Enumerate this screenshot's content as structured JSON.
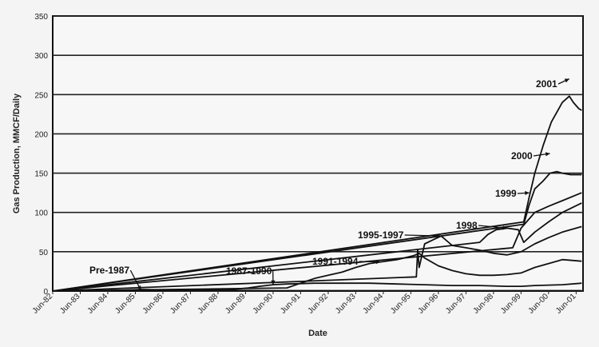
{
  "chart_data": {
    "type": "line",
    "title": "",
    "xlabel": "Date",
    "ylabel": "Gas Production, MMCF/Daily",
    "ylim": [
      0,
      350
    ],
    "yticks": [
      0,
      50,
      100,
      150,
      200,
      250,
      300,
      350
    ],
    "xlim": [
      1982.5,
      2001.75
    ],
    "xtick_labels": [
      "Jun-82",
      "Jun-83",
      "Jun-84",
      "Jun-85",
      "Jun-86",
      "Jun-87",
      "Jun-88",
      "Jun-89",
      "Jun-90",
      "Jun-91",
      "Jun-92",
      "Jun-93",
      "Jun-94",
      "Jun-95",
      "Jun-96",
      "Jun-97",
      "Jun-98",
      "Jun-99",
      "Jun-00",
      "Jun-01"
    ],
    "xtick_values": [
      1982.5,
      1983.5,
      1984.5,
      1985.5,
      1986.5,
      1987.5,
      1988.5,
      1989.5,
      1990.5,
      1991.5,
      1992.5,
      1993.5,
      1994.5,
      1995.5,
      1996.5,
      1997.5,
      1998.5,
      1999.5,
      2000.5,
      2001.5
    ],
    "grid": "horizontal",
    "series": [
      {
        "name": "Pre-1987",
        "annotation": {
          "text": "Pre-1987",
          "x": 1985.7,
          "y": 1
        },
        "x": [
          1982.5,
          1983.5,
          1984.5,
          1985.0,
          1985.7,
          1986.5,
          1987.5,
          1988.5,
          1990.5,
          1992.5,
          1994.5,
          1996.5,
          1998.5,
          2000.5,
          2001.7
        ],
        "y": [
          0,
          0,
          0.5,
          1,
          2,
          1.5,
          1,
          1,
          0.5,
          0.5,
          0.5,
          0.5,
          0.5,
          0.5,
          0.5
        ]
      },
      {
        "name": "1987-1990",
        "annotation": {
          "text": "1987-1990",
          "x": 1990.5,
          "y": 8
        },
        "x": [
          1982.5,
          1987.0,
          1988.0,
          1989.0,
          1989.6,
          1990.0,
          1990.5,
          1991.0,
          1992.0,
          1993.0,
          1994.0,
          1995.0,
          1996.0,
          1997.0,
          1998.0,
          1999.0,
          1999.5,
          2000.0,
          2001.0,
          2001.7
        ],
        "y": [
          0,
          0.5,
          1,
          2,
          4,
          6,
          8,
          9,
          10,
          10,
          10,
          9,
          8,
          7,
          7,
          6,
          6,
          7,
          8,
          10
        ]
      },
      {
        "name": "1991-1994",
        "annotation": {
          "text": "1991-1994",
          "x": 1994.4,
          "y": 37
        },
        "x": [
          1982.5,
          1991.0,
          1991.5,
          1992.0,
          1992.5,
          1993.0,
          1993.5,
          1994.0,
          1994.4,
          1995.0,
          1995.6,
          1995.8,
          1996.0,
          1996.5,
          1997.0,
          1997.5,
          1998.0,
          1998.5,
          1999.0,
          1999.5,
          2000.0,
          2000.5,
          2001.0,
          2001.7
        ],
        "y": [
          0,
          4,
          10,
          16,
          20,
          24,
          30,
          35,
          37,
          40,
          45,
          48,
          42,
          32,
          26,
          22,
          20,
          20,
          21,
          23,
          30,
          35,
          40,
          38
        ]
      },
      {
        "name": "1995-1997",
        "annotation": {
          "text": "1995-1997",
          "x": 1996.6,
          "y": 70
        },
        "x": [
          1982.5,
          1995.7,
          1995.75,
          1995.8,
          1996.0,
          1996.3,
          1996.6,
          1997.0,
          1997.5,
          1998.0,
          1998.5,
          1999.0,
          1999.5,
          2000.0,
          2000.5,
          2001.0,
          2001.7
        ],
        "y": [
          0,
          18,
          52,
          30,
          60,
          65,
          70,
          58,
          55,
          52,
          48,
          46,
          50,
          60,
          68,
          75,
          82
        ]
      },
      {
        "name": "1998",
        "annotation": {
          "text": "1998",
          "x": 1999.0,
          "y": 80
        },
        "x": [
          1982.5,
          1998.0,
          1998.3,
          1998.6,
          1999.0,
          1999.4,
          1999.6,
          2000.0,
          2000.5,
          2001.0,
          2001.7
        ],
        "y": [
          0,
          62,
          72,
          78,
          80,
          78,
          62,
          75,
          88,
          100,
          112
        ]
      },
      {
        "name": "1999",
        "annotation": {
          "text": "1999",
          "x": 1999.8,
          "y": 125
        },
        "x": [
          1982.5,
          1999.2,
          1999.5,
          1999.8,
          2000.0,
          2000.5,
          2001.0,
          2001.7
        ],
        "y": [
          0,
          55,
          80,
          92,
          100,
          108,
          115,
          125
        ]
      },
      {
        "name": "2000",
        "annotation": {
          "text": "2000",
          "x": 2000.55,
          "y": 175
        },
        "x": [
          1982.5,
          1999.6,
          1999.8,
          2000.0,
          2000.3,
          2000.55,
          2000.8,
          2001.0,
          2001.3,
          2001.7
        ],
        "y": [
          0,
          85,
          110,
          130,
          140,
          150,
          152,
          150,
          148,
          148
        ]
      },
      {
        "name": "2001",
        "annotation": {
          "text": "2001",
          "x": 2001.25,
          "y": 270
        },
        "x": [
          1982.5,
          1999.6,
          1999.8,
          2000.0,
          2000.3,
          2000.6,
          2001.0,
          2001.25,
          2001.4,
          2001.6,
          2001.7
        ],
        "y": [
          0,
          88,
          120,
          150,
          185,
          215,
          240,
          248,
          240,
          232,
          230
        ]
      }
    ]
  }
}
